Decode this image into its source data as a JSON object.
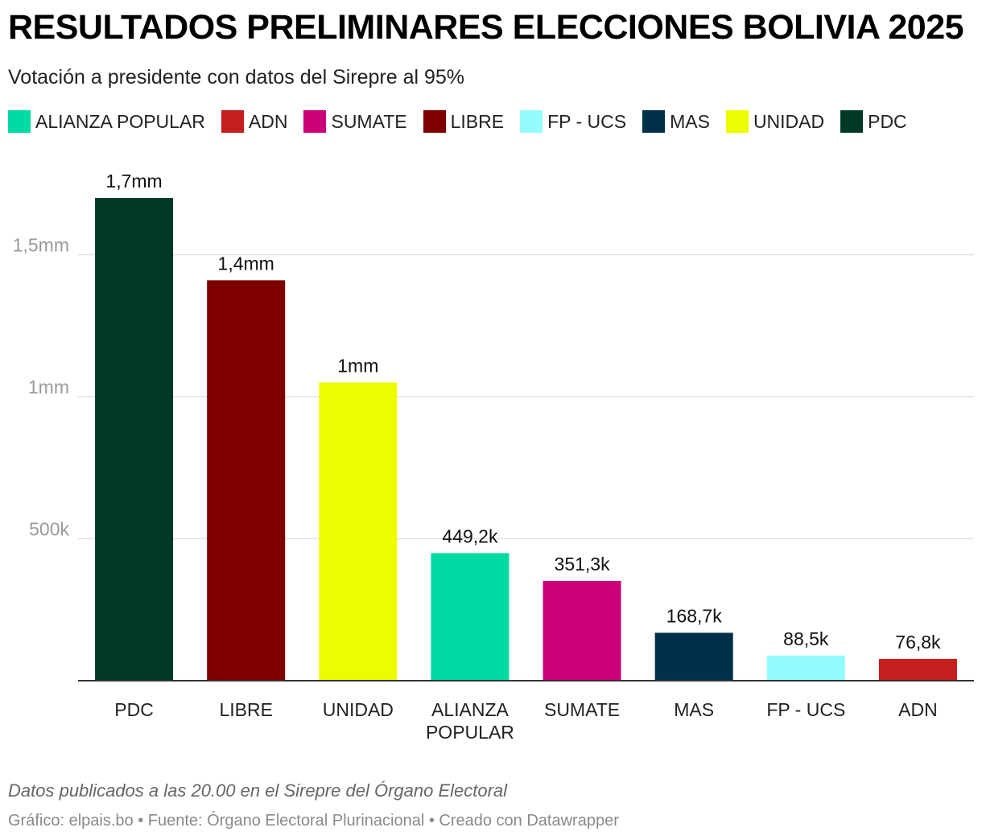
{
  "title": "RESULTADOS PRELIMINARES ELECCIONES BOLIVIA 2025",
  "subtitle": "Votación a presidente con datos del Sirepre al 95%",
  "legend": [
    {
      "label": "ALIANZA POPULAR",
      "color": "#00dba3"
    },
    {
      "label": "ADN",
      "color": "#c51e1e"
    },
    {
      "label": "SUMATE",
      "color": "#cc0077"
    },
    {
      "label": "LIBRE",
      "color": "#7e0000"
    },
    {
      "label": "FP - UCS",
      "color": "#94fcfc"
    },
    {
      "label": "MAS",
      "color": "#02304a"
    },
    {
      "label": "UNIDAD",
      "color": "#eefc00"
    },
    {
      "label": "PDC",
      "color": "#003a27"
    }
  ],
  "chart_data": {
    "type": "bar",
    "categories": [
      "PDC",
      "LIBRE",
      "UNIDAD",
      "ALIANZA POPULAR",
      "SUMATE",
      "MAS",
      "FP - UCS",
      "ADN"
    ],
    "category_lines": [
      [
        "PDC"
      ],
      [
        "LIBRE"
      ],
      [
        "UNIDAD"
      ],
      [
        "ALIANZA",
        "POPULAR"
      ],
      [
        "SUMATE"
      ],
      [
        "MAS"
      ],
      [
        "FP - UCS"
      ],
      [
        "ADN"
      ]
    ],
    "values": [
      1700000,
      1410000,
      1050000,
      449200,
      351300,
      168700,
      88500,
      76800
    ],
    "value_labels": [
      "1,7mm",
      "1,4mm",
      "1mm",
      "449,2k",
      "351,3k",
      "168,7k",
      "88,5k",
      "76,8k"
    ],
    "colors": [
      "#003a27",
      "#7e0000",
      "#eefc00",
      "#00dba3",
      "#cc0077",
      "#02304a",
      "#94fcfc",
      "#c51e1e"
    ],
    "y_ticks": [
      {
        "value": 500000,
        "label": "500k"
      },
      {
        "value": 1000000,
        "label": "1mm"
      },
      {
        "value": 1500000,
        "label": "1,5mm"
      }
    ],
    "ylim": [
      0,
      1700000
    ],
    "grid": true
  },
  "footer": {
    "note": "Datos publicados a las 20.00 en el Sirepre del Órgano Electoral",
    "credit": "Gráfico: elpais.bo • Fuente: Órgano Electoral Plurinacional • Creado con Datawrapper"
  }
}
